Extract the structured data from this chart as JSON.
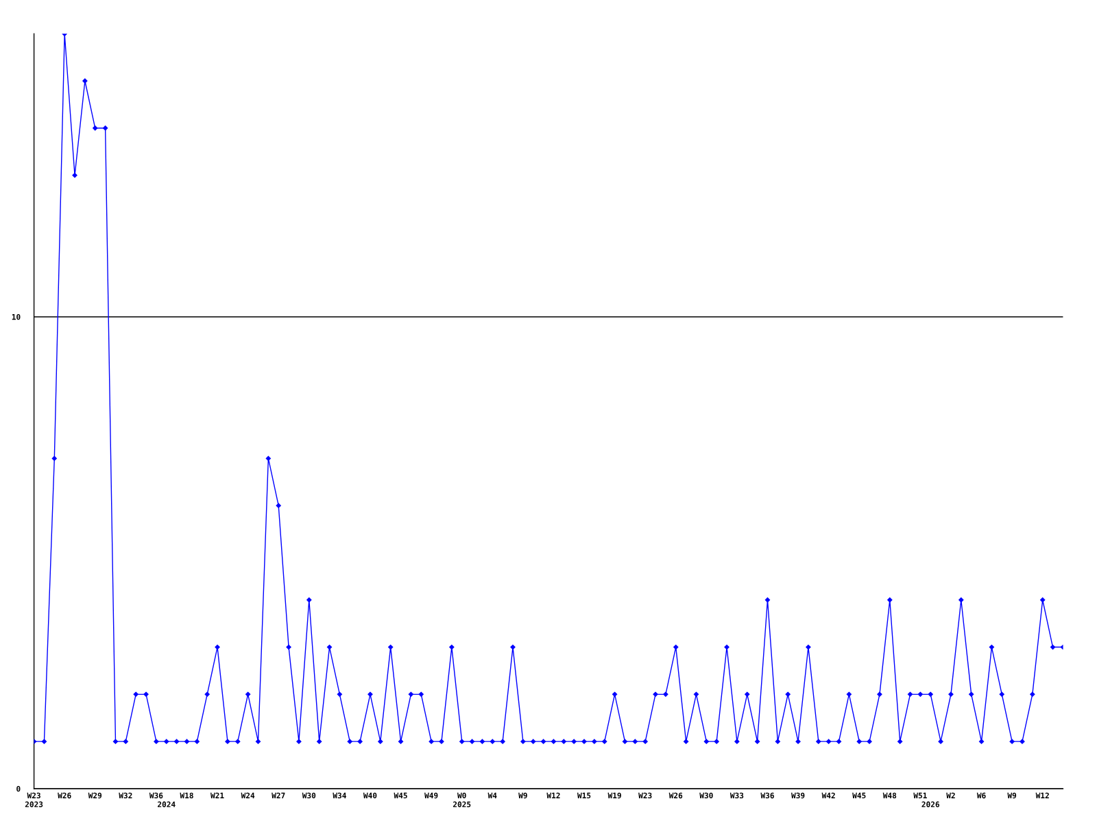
{
  "chart_data": {
    "type": "line",
    "categories": [
      "W23\n2023",
      null,
      null,
      "W26",
      null,
      null,
      "W29",
      null,
      null,
      "W32",
      null,
      null,
      "W36",
      "\n2024",
      null,
      "W18",
      null,
      null,
      "W21",
      null,
      null,
      "W24",
      null,
      null,
      "W27",
      null,
      null,
      "W30",
      null,
      null,
      "W34",
      null,
      null,
      "W40",
      null,
      null,
      "W45",
      null,
      null,
      "W49",
      null,
      null,
      "W0\n2025",
      null,
      null,
      "W4",
      null,
      null,
      "W9",
      null,
      null,
      "W12",
      null,
      null,
      "W15",
      null,
      null,
      "W19",
      null,
      null,
      "W23",
      null,
      null,
      "W26",
      null,
      null,
      "W30",
      null,
      null,
      "W33",
      null,
      null,
      "W36",
      null,
      null,
      "W39",
      null,
      null,
      "W42",
      null,
      null,
      "W45",
      null,
      null,
      "W48",
      null,
      null,
      "W51",
      "\n2026",
      null,
      "W2",
      null,
      null,
      "W6",
      null,
      null,
      "W9",
      null,
      null,
      "W12",
      null,
      null
    ],
    "values": [
      1,
      1,
      7,
      16,
      13,
      15,
      14,
      14,
      1,
      1,
      2,
      2,
      1,
      1,
      1,
      1,
      1,
      2,
      3,
      1,
      1,
      2,
      1,
      7,
      6,
      3,
      1,
      4,
      1,
      3,
      2,
      1,
      1,
      2,
      1,
      3,
      1,
      2,
      2,
      1,
      1,
      3,
      1,
      1,
      1,
      1,
      1,
      3,
      1,
      1,
      1,
      1,
      1,
      1,
      1,
      1,
      1,
      2,
      1,
      1,
      1,
      2,
      2,
      3,
      1,
      2,
      1,
      1,
      3,
      1,
      2,
      1,
      4,
      1,
      2,
      1,
      3,
      1,
      1,
      1,
      2,
      1,
      1,
      2,
      4,
      1,
      2,
      2,
      2,
      1,
      2,
      4,
      2,
      1,
      3,
      2,
      1,
      1,
      2,
      4,
      3,
      3
    ],
    "color": "#0000ff",
    "ylim": [
      0,
      16
    ],
    "yticks": [
      0,
      10
    ],
    "grid": "y",
    "marker": "diamond",
    "line_style": "solid"
  }
}
